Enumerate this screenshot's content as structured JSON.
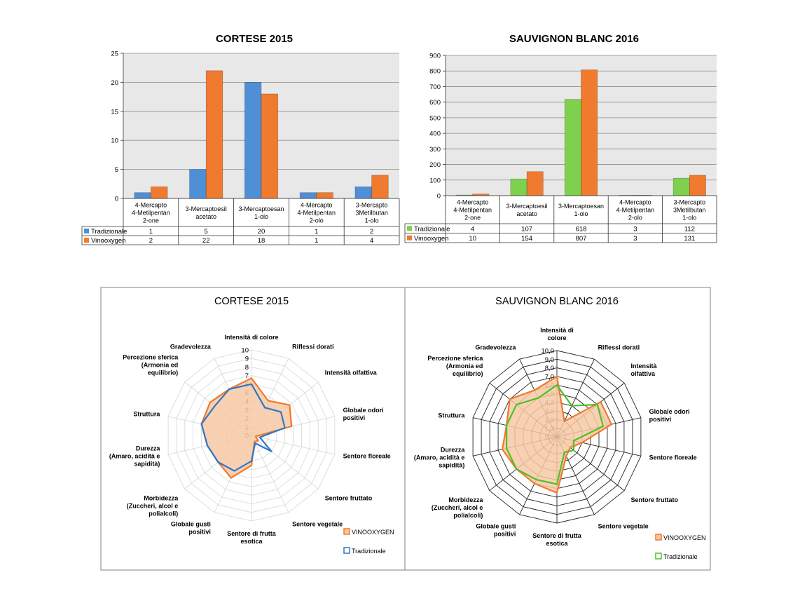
{
  "colors": {
    "tradizionale_bar_left": "#4f8fd6",
    "vinooxygen": "#f07a2e",
    "tradizionale_bar_right": "#7dd14e",
    "radar_fill": "#f7c9a4",
    "radar_trad_left": "#2f78c8",
    "radar_trad_right": "#4cc12a",
    "plot_bg": "#e8e8e8",
    "grid": "#8c8c8c"
  },
  "chart_data": [
    {
      "type": "bar",
      "title": "CORTESE 2015",
      "categories": [
        [
          "4-Mercapto",
          "4-Metilpentan",
          "2-one"
        ],
        [
          "3-Mercaptoesil",
          "acetato"
        ],
        [
          "3-Mercaptoesan",
          "1-olo"
        ],
        [
          "4-Mercapto",
          "4-Metilpentan",
          "2-olo"
        ],
        [
          "3-Mercapto",
          "3Metilbutan",
          "1-olo"
        ]
      ],
      "series": [
        {
          "name": "Tradizionale",
          "values": [
            1,
            5,
            20,
            1,
            2
          ]
        },
        {
          "name": "Vinooxygen",
          "values": [
            2,
            22,
            18,
            1,
            4
          ]
        }
      ],
      "ylim": [
        0,
        25
      ],
      "yticks": [
        0,
        5,
        10,
        15,
        20,
        25
      ],
      "grid": true,
      "legend": "data-table"
    },
    {
      "type": "bar",
      "title": "SAUVIGNON BLANC 2016",
      "categories": [
        [
          "4-Mercapto",
          "4-Metilpentan",
          "2-one"
        ],
        [
          "3-Mercaptoesil",
          "acetato"
        ],
        [
          "3-Mercaptoesan",
          "1-olo"
        ],
        [
          "4-Mercapto",
          "4-Metilpentan",
          "2-olo"
        ],
        [
          "3-Mercapto",
          "3Metilbutan",
          "1-olo"
        ]
      ],
      "series": [
        {
          "name": "Tradizionale",
          "values": [
            4,
            107,
            618,
            3,
            112
          ]
        },
        {
          "name": "Vinooxygen",
          "values": [
            10,
            154,
            807,
            3,
            131
          ]
        }
      ],
      "ylim": [
        0,
        900
      ],
      "yticks": [
        0,
        100,
        200,
        300,
        400,
        500,
        600,
        700,
        800,
        900
      ],
      "grid": true,
      "legend": "data-table"
    },
    {
      "type": "radar",
      "title": "CORTESE 2015",
      "axes": [
        [
          "Intensità di colore"
        ],
        [
          "Riflessi dorati"
        ],
        [
          "Intensità olfattiva"
        ],
        [
          "Globale odori",
          "positivi"
        ],
        [
          "Sentore floreale"
        ],
        [
          "Sentore fruttato"
        ],
        [
          "Sentore vegetale"
        ],
        [
          "Sentore di frutta",
          "esotica"
        ],
        [
          "Globale gusti",
          "positivi"
        ],
        [
          "Morbidezza",
          "(Zuccheri, alcol e",
          "polialcoli)"
        ],
        [
          "Durezza",
          "(Amaro, acidità e",
          "sapidità)"
        ],
        [
          "Struttura"
        ],
        [
          "Percezione sferica",
          "(Armonia ed",
          "equilibrio)"
        ],
        [
          "Gradevolezza"
        ]
      ],
      "rticks": [
        "0",
        "1",
        "2",
        "3",
        "4",
        "5",
        "6",
        "7",
        "8",
        "9",
        "10"
      ],
      "rlim": [
        0,
        10
      ],
      "series": [
        {
          "name": "VINOOXYGEN",
          "values": [
            6.7,
            4.5,
            5.7,
            4.8,
            0.5,
            1.0,
            0.8,
            3.5,
            5.5,
            5.0,
            5.3,
            6.0,
            6.2,
            6.0
          ]
        },
        {
          "name": "Tradizionale",
          "values": [
            6.0,
            3.6,
            4.4,
            4.0,
            1.0,
            3.0,
            1.0,
            3.0,
            4.6,
            5.0,
            5.3,
            6.0,
            5.5,
            6.0
          ]
        }
      ],
      "legend": "bottom-right"
    },
    {
      "type": "radar",
      "title": "SAUVIGNON BLANC 2016",
      "axes": [
        [
          "Intensità di",
          "colore"
        ],
        [
          "Riflessi dorati"
        ],
        [
          "Intensità",
          "olfattiva"
        ],
        [
          "Globale odori",
          "positivi"
        ],
        [
          "Sentore floreale"
        ],
        [
          "Sentore fruttato"
        ],
        [
          "Sentore vegetale"
        ],
        [
          "Sentore di frutta",
          "esotica"
        ],
        [
          "Globale gusti",
          "positivi"
        ],
        [
          "Morbidezza",
          "(Zuccheri, alcol e",
          "polialcoli)"
        ],
        [
          "Durezza",
          "(Amaro, acidità e",
          "sapidità)"
        ],
        [
          "Struttura"
        ],
        [
          "Percezione sferica",
          "(Armonia ed",
          "equilibrio)"
        ],
        [
          "Gradevolezza"
        ]
      ],
      "rticks": [
        "0,0",
        "1,0",
        "2,0",
        "3,0",
        "4,0",
        "5,0",
        "6,0",
        "7,0",
        "8,0",
        "9,0",
        "10,0"
      ],
      "rlim": [
        0,
        10
      ],
      "series": [
        {
          "name": "VINOOXYGEN",
          "values": [
            7.0,
            2.0,
            6.5,
            6.5,
            3.0,
            2.0,
            2.5,
            6.5,
            6.0,
            6.0,
            6.5,
            6.0,
            7.0,
            6.0
          ]
        },
        {
          "name": "Tradizionale",
          "values": [
            6.0,
            4.0,
            6.0,
            5.5,
            2.0,
            2.5,
            2.0,
            5.5,
            5.5,
            6.0,
            6.0,
            6.0,
            6.0,
            5.0
          ]
        }
      ],
      "legend": "bottom-right"
    }
  ]
}
